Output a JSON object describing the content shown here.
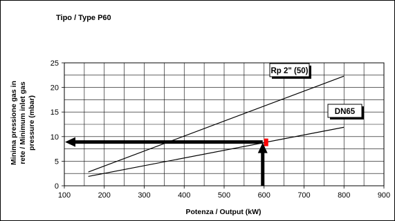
{
  "chart_data": {
    "type": "line",
    "title": "Tipo / Type P60",
    "xlabel": "Potenza / Output (kW)",
    "ylabel_lines": [
      "Minima pressione gas in",
      "rete / Minimum inlet gas",
      "pressure (mbar)"
    ],
    "xlim": [
      100,
      900
    ],
    "ylim": [
      0,
      25
    ],
    "x_ticks": [
      100,
      200,
      300,
      400,
      500,
      600,
      700,
      800,
      900
    ],
    "y_ticks": [
      0,
      5,
      10,
      15,
      20,
      25
    ],
    "grid": true,
    "series": [
      {
        "name": "Rp 2\" (50)",
        "x": [
          160,
          800
        ],
        "y": [
          2.8,
          22.3
        ]
      },
      {
        "name": "DN65",
        "x": [
          160,
          800
        ],
        "y": [
          1.9,
          11.9
        ]
      }
    ],
    "annotation": {
      "operating_point": {
        "x": 600,
        "y": 8.9
      },
      "marker_color": "#ff0000",
      "arrow_color": "#000000"
    }
  }
}
